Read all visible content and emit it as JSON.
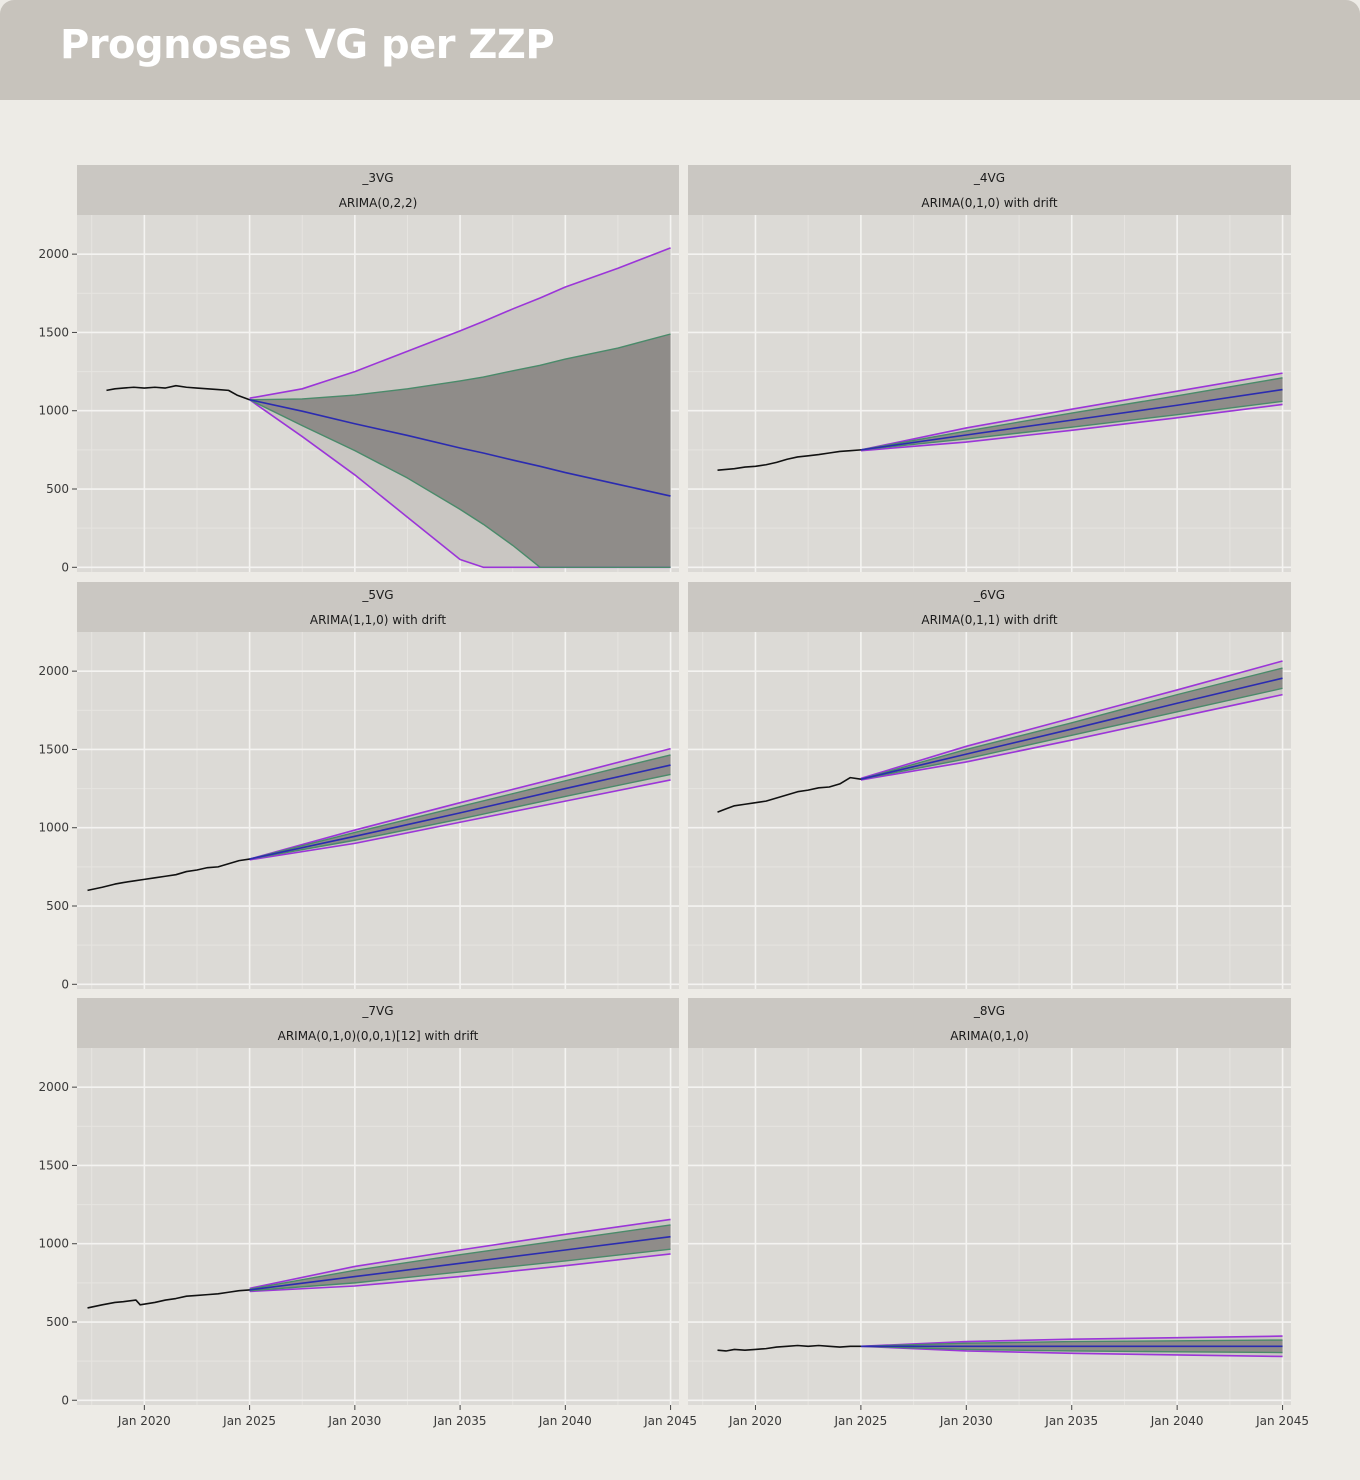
{
  "header": {
    "title": "Prognoses VG per ZZP"
  },
  "chart_data": {
    "type": "line",
    "layout": "facet-grid-3x2",
    "y_ticks": [
      0,
      500,
      1000,
      1500,
      2000
    ],
    "ylim": [
      -30,
      2250
    ],
    "xlim": [
      2016.8,
      2045.4
    ],
    "x_ticks": [
      {
        "value": 2020,
        "label": "Jan 2020"
      },
      {
        "value": 2025,
        "label": "Jan 2025"
      },
      {
        "value": 2030,
        "label": "Jan 2030"
      },
      {
        "value": 2035,
        "label": "Jan 2035"
      },
      {
        "value": 2040,
        "label": "Jan 2040"
      },
      {
        "value": 2045,
        "label": "Jan 2045"
      }
    ],
    "colors": {
      "history": "#111111",
      "mean": "#2b2bb0",
      "band80_line": "#4a8a6a",
      "band95_line": "#9b35d8",
      "band80_fill": "#8f8c89",
      "band95_fill": "#c9c6c2",
      "panel_bg": "#dcdad6",
      "strip_bg": "#cac7c2"
    },
    "panels": [
      {
        "name": "_3VG",
        "model": "ARIMA(0,2,2)",
        "history": [
          [
            2018.2,
            1130
          ],
          [
            2018.6,
            1140
          ],
          [
            2019.0,
            1145
          ],
          [
            2019.5,
            1150
          ],
          [
            2020.0,
            1145
          ],
          [
            2020.5,
            1150
          ],
          [
            2021.0,
            1145
          ],
          [
            2021.5,
            1160
          ],
          [
            2022.0,
            1150
          ],
          [
            2022.5,
            1145
          ],
          [
            2023.0,
            1140
          ],
          [
            2023.5,
            1135
          ],
          [
            2024.0,
            1130
          ],
          [
            2024.4,
            1100
          ],
          [
            2025.0,
            1070
          ]
        ],
        "forecast": {
          "x": [
            2025,
            2027.5,
            2030,
            2032.5,
            2035,
            2036.1,
            2037.5,
            2038.8,
            2040,
            2042.5,
            2045
          ],
          "mean": [
            1070,
            997,
            917,
            842,
            762,
            730,
            685,
            645,
            605,
            530,
            455
          ],
          "lo80": [
            1070,
            905,
            745,
            570,
            370,
            275,
            140,
            0,
            0,
            0,
            0
          ],
          "hi80": [
            1070,
            1075,
            1100,
            1140,
            1190,
            1215,
            1255,
            1290,
            1330,
            1400,
            1490
          ],
          "lo95": [
            1070,
            835,
            590,
            320,
            50,
            0,
            0,
            0,
            0,
            0,
            0
          ],
          "hi95": [
            1080,
            1140,
            1250,
            1380,
            1510,
            1570,
            1650,
            1720,
            1790,
            1910,
            2040
          ]
        }
      },
      {
        "name": "_4VG",
        "model": "ARIMA(0,1,0) with drift",
        "history": [
          [
            2018.2,
            620
          ],
          [
            2018.6,
            625
          ],
          [
            2019.0,
            630
          ],
          [
            2019.5,
            640
          ],
          [
            2020.0,
            645
          ],
          [
            2020.5,
            655
          ],
          [
            2021.0,
            670
          ],
          [
            2021.5,
            690
          ],
          [
            2022.0,
            705
          ],
          [
            2022.5,
            712
          ],
          [
            2023.0,
            720
          ],
          [
            2023.5,
            730
          ],
          [
            2024.0,
            740
          ],
          [
            2024.5,
            745
          ],
          [
            2025.0,
            750
          ]
        ],
        "forecast": {
          "x": [
            2025,
            2030,
            2035,
            2040,
            2045
          ],
          "mean": [
            750,
            845,
            940,
            1035,
            1135
          ],
          "lo80": [
            750,
            820,
            895,
            975,
            1060
          ],
          "hi80": [
            750,
            870,
            985,
            1095,
            1210
          ],
          "lo95": [
            745,
            800,
            875,
            955,
            1040
          ],
          "hi95": [
            750,
            890,
            1010,
            1125,
            1240
          ]
        }
      },
      {
        "name": "_5VG",
        "model": "ARIMA(1,1,0) with drift",
        "history": [
          [
            2017.3,
            600
          ],
          [
            2018.0,
            620
          ],
          [
            2018.6,
            640
          ],
          [
            2019.0,
            650
          ],
          [
            2019.5,
            660
          ],
          [
            2020.0,
            670
          ],
          [
            2020.5,
            680
          ],
          [
            2021.0,
            690
          ],
          [
            2021.5,
            700
          ],
          [
            2022.0,
            720
          ],
          [
            2022.5,
            730
          ],
          [
            2023.0,
            745
          ],
          [
            2023.5,
            750
          ],
          [
            2024.0,
            770
          ],
          [
            2024.5,
            790
          ],
          [
            2025.0,
            800
          ]
        ],
        "forecast": {
          "x": [
            2025,
            2030,
            2035,
            2040,
            2045
          ],
          "mean": [
            800,
            945,
            1095,
            1250,
            1400
          ],
          "lo80": [
            800,
            920,
            1055,
            1200,
            1340
          ],
          "hi80": [
            800,
            970,
            1135,
            1300,
            1465
          ],
          "lo95": [
            795,
            900,
            1035,
            1170,
            1305
          ],
          "hi95": [
            800,
            985,
            1160,
            1330,
            1505
          ]
        }
      },
      {
        "name": "_6VG",
        "model": "ARIMA(0,1,1) with drift",
        "history": [
          [
            2018.2,
            1100
          ],
          [
            2018.6,
            1120
          ],
          [
            2019.0,
            1140
          ],
          [
            2019.5,
            1150
          ],
          [
            2020.0,
            1160
          ],
          [
            2020.5,
            1170
          ],
          [
            2021.0,
            1190
          ],
          [
            2021.5,
            1210
          ],
          [
            2022.0,
            1230
          ],
          [
            2022.5,
            1240
          ],
          [
            2023.0,
            1255
          ],
          [
            2023.5,
            1260
          ],
          [
            2024.0,
            1280
          ],
          [
            2024.5,
            1320
          ],
          [
            2025.0,
            1310
          ]
        ],
        "forecast": {
          "x": [
            2025,
            2030,
            2035,
            2040,
            2045
          ],
          "mean": [
            1310,
            1470,
            1630,
            1795,
            1955
          ],
          "lo80": [
            1310,
            1440,
            1590,
            1740,
            1890
          ],
          "hi80": [
            1310,
            1500,
            1670,
            1850,
            2020
          ],
          "lo95": [
            1305,
            1420,
            1560,
            1705,
            1850
          ],
          "hi95": [
            1315,
            1520,
            1700,
            1880,
            2065
          ]
        }
      },
      {
        "name": "_7VG",
        "model": "ARIMA(0,1,0)(0,0,1)[12] with drift",
        "history": [
          [
            2017.3,
            590
          ],
          [
            2018.0,
            610
          ],
          [
            2018.6,
            625
          ],
          [
            2019.0,
            630
          ],
          [
            2019.6,
            640
          ],
          [
            2019.8,
            610
          ],
          [
            2020.5,
            625
          ],
          [
            2021.0,
            640
          ],
          [
            2021.5,
            650
          ],
          [
            2022.0,
            665
          ],
          [
            2022.5,
            670
          ],
          [
            2023.0,
            675
          ],
          [
            2023.5,
            680
          ],
          [
            2024.0,
            690
          ],
          [
            2024.5,
            700
          ],
          [
            2025.0,
            705
          ]
        ],
        "forecast": {
          "x": [
            2025,
            2030,
            2035,
            2040,
            2045
          ],
          "mean": [
            705,
            790,
            875,
            960,
            1045
          ],
          "lo80": [
            700,
            750,
            820,
            890,
            965
          ],
          "hi80": [
            710,
            830,
            930,
            1025,
            1120
          ],
          "lo95": [
            695,
            730,
            790,
            860,
            935
          ],
          "hi95": [
            715,
            855,
            960,
            1060,
            1155
          ]
        }
      },
      {
        "name": "_8VG",
        "model": "ARIMA(0,1,0)",
        "history": [
          [
            2018.2,
            320
          ],
          [
            2018.6,
            315
          ],
          [
            2019.0,
            325
          ],
          [
            2019.5,
            320
          ],
          [
            2020.0,
            325
          ],
          [
            2020.5,
            330
          ],
          [
            2021.0,
            340
          ],
          [
            2021.5,
            345
          ],
          [
            2022.0,
            350
          ],
          [
            2022.5,
            345
          ],
          [
            2023.0,
            350
          ],
          [
            2023.5,
            345
          ],
          [
            2024.0,
            340
          ],
          [
            2024.5,
            345
          ],
          [
            2025.0,
            345
          ]
        ],
        "forecast": {
          "x": [
            2025,
            2030,
            2035,
            2040,
            2045
          ],
          "mean": [
            345,
            345,
            345,
            345,
            345
          ],
          "lo80": [
            345,
            325,
            315,
            310,
            305
          ],
          "hi80": [
            345,
            365,
            375,
            380,
            385
          ],
          "lo95": [
            345,
            315,
            300,
            290,
            280
          ],
          "hi95": [
            345,
            375,
            390,
            400,
            410
          ]
        }
      }
    ]
  }
}
